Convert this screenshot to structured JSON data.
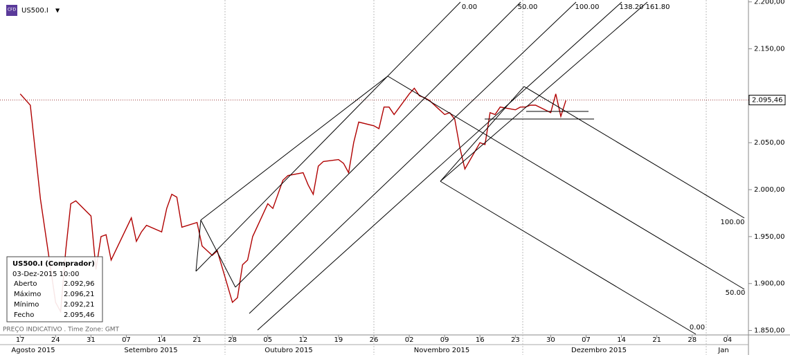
{
  "header": {
    "symbol": "US500.I",
    "dropdown": "▼",
    "icon": "CFD"
  },
  "chart_data": {
    "type": "line",
    "x": [
      "2015-08-17",
      "2015-08-19",
      "2015-08-20",
      "2015-08-21",
      "2015-08-24",
      "2015-08-25",
      "2015-08-26",
      "2015-08-27",
      "2015-08-28",
      "2015-08-31",
      "2015-09-01",
      "2015-09-02",
      "2015-09-03",
      "2015-09-04",
      "2015-09-08",
      "2015-09-09",
      "2015-09-10",
      "2015-09-11",
      "2015-09-14",
      "2015-09-15",
      "2015-09-16",
      "2015-09-17",
      "2015-09-18",
      "2015-09-21",
      "2015-09-22",
      "2015-09-23",
      "2015-09-24",
      "2015-09-25",
      "2015-09-28",
      "2015-09-29",
      "2015-09-30",
      "2015-10-01",
      "2015-10-02",
      "2015-10-05",
      "2015-10-06",
      "2015-10-07",
      "2015-10-08",
      "2015-10-09",
      "2015-10-12",
      "2015-10-13",
      "2015-10-14",
      "2015-10-15",
      "2015-10-16",
      "2015-10-19",
      "2015-10-20",
      "2015-10-21",
      "2015-10-22",
      "2015-10-23",
      "2015-10-26",
      "2015-10-27",
      "2015-10-28",
      "2015-10-29",
      "2015-10-30",
      "2015-11-02",
      "2015-11-03",
      "2015-11-04",
      "2015-11-05",
      "2015-11-06",
      "2015-11-09",
      "2015-11-10",
      "2015-11-11",
      "2015-11-12",
      "2015-11-13",
      "2015-11-16",
      "2015-11-17",
      "2015-11-18",
      "2015-11-19",
      "2015-11-20",
      "2015-11-23",
      "2015-11-24",
      "2015-11-25",
      "2015-11-26",
      "2015-11-27",
      "2015-11-30",
      "2015-12-01",
      "2015-12-02",
      "2015-12-03"
    ],
    "series": [
      {
        "name": "US500.I",
        "color": "#b00000",
        "values": [
          2102,
          2090,
          2040,
          1990,
          1880,
          1870,
          1935,
          1985,
          1988,
          1972,
          1915,
          1950,
          1952,
          1925,
          1970,
          1945,
          1955,
          1962,
          1955,
          1980,
          1995,
          1992,
          1960,
          1965,
          1940,
          1935,
          1930,
          1935,
          1880,
          1885,
          1920,
          1925,
          1950,
          1985,
          1980,
          1995,
          2010,
          2015,
          2018,
          2005,
          1995,
          2025,
          2030,
          2032,
          2028,
          2018,
          2050,
          2072,
          2068,
          2065,
          2088,
          2088,
          2080,
          2102,
          2108,
          2100,
          2098,
          2095,
          2080,
          2082,
          2075,
          2045,
          2022,
          2050,
          2048,
          2082,
          2080,
          2088,
          2085,
          2088,
          2088,
          2090,
          2090,
          2082,
          2102,
          2078,
          2095
        ]
      }
    ],
    "xlim": [
      "2015-08-13",
      "2016-01-08"
    ],
    "xticks": [
      {
        "value": "2015-08-17",
        "label": "17"
      },
      {
        "value": "2015-08-24",
        "label": "24"
      },
      {
        "value": "2015-08-31",
        "label": "31"
      },
      {
        "value": "2015-09-07",
        "label": "07"
      },
      {
        "value": "2015-09-14",
        "label": "14"
      },
      {
        "value": "2015-09-21",
        "label": "21"
      },
      {
        "value": "2015-09-28",
        "label": "28"
      },
      {
        "value": "2015-10-05",
        "label": "05"
      },
      {
        "value": "2015-10-12",
        "label": "12"
      },
      {
        "value": "2015-10-19",
        "label": "19"
      },
      {
        "value": "2015-10-26",
        "label": "26"
      },
      {
        "value": "2015-11-02",
        "label": "02"
      },
      {
        "value": "2015-11-09",
        "label": "09"
      },
      {
        "value": "2015-11-16",
        "label": "16"
      },
      {
        "value": "2015-11-23",
        "label": "23"
      },
      {
        "value": "2015-11-30",
        "label": "30"
      },
      {
        "value": "2015-12-07",
        "label": "07"
      },
      {
        "value": "2015-12-14",
        "label": "14"
      },
      {
        "value": "2015-12-21",
        "label": "21"
      },
      {
        "value": "2015-12-28",
        "label": "28"
      },
      {
        "value": "2016-01-04",
        "label": "04"
      }
    ],
    "months": [
      "Agosto 2015",
      "Setembro 2015",
      "Outubro 2015",
      "Novembro 2015",
      "Dezembro 2015",
      "Jan"
    ],
    "ylim": [
      1846,
      2202
    ],
    "yticks": [
      {
        "value": 1850,
        "label": "1.850,00"
      },
      {
        "value": 1900,
        "label": "1.900,00"
      },
      {
        "value": 1950,
        "label": "1.950,00"
      },
      {
        "value": 2000,
        "label": "2.000,00"
      },
      {
        "value": 2050,
        "label": "2.050,00"
      },
      {
        "value": 2150,
        "label": "2.150,00"
      },
      {
        "value": 2200,
        "label": "2.200,00"
      }
    ],
    "last_price": {
      "value": 2095.46,
      "label": "2.095,46"
    },
    "fib_top_labels": [
      "0.00",
      "50.00",
      "100.00",
      "138.20",
      "161.80"
    ],
    "fib_right_labels": [
      "100.00",
      "50.00",
      "0.00"
    ]
  },
  "info_box": {
    "title": "US500.I (Comprador)",
    "datetime": "03-Dez-2015 10:00",
    "rows": [
      [
        "Aberto",
        "2.092,96"
      ],
      [
        "Máximo",
        "2.096,21"
      ],
      [
        "Mínimo",
        "2.092,21"
      ],
      [
        "Fecho",
        "2.095,46"
      ]
    ]
  },
  "footer": "PREÇO INDICATIVO . Time Zone: GMT"
}
